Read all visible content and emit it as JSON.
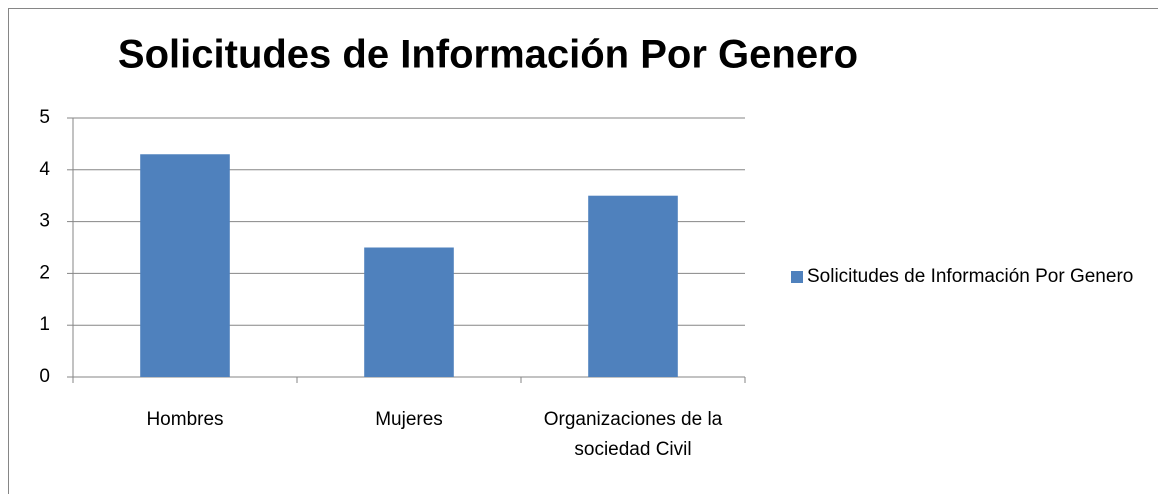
{
  "chart_data": {
    "type": "bar",
    "title": "Solicitudes de Información Por Genero",
    "categories": [
      "Hombres",
      "Mujeres",
      "Organizaciones de la sociedad Civil"
    ],
    "series": [
      {
        "name": "Solicitudes de Información Por Genero",
        "color": "#4f81bd",
        "values": [
          4.3,
          2.5,
          3.5
        ]
      }
    ],
    "ylim": [
      0,
      5
    ],
    "yticks": [
      0,
      1,
      2,
      3,
      4,
      5
    ],
    "grid": true,
    "legend": "right"
  }
}
